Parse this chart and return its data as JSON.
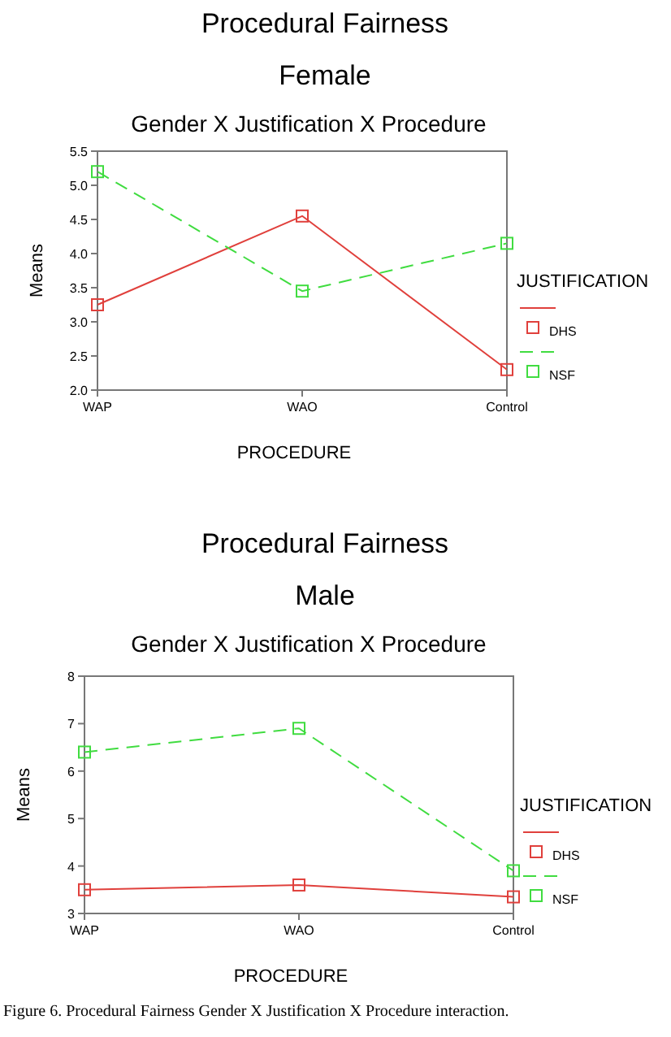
{
  "chart_data": [
    {
      "type": "line",
      "title": "Procedural Fairness",
      "subtitle": "Female",
      "annotations": [
        "Gender X Justification X Procedure"
      ],
      "xlabel": "PROCEDURE",
      "ylabel": "Means",
      "legend_title": "JUSTIFICATION",
      "legend": "right",
      "marker": "square",
      "categories": [
        "WAP",
        "WAO",
        "Control"
      ],
      "ylim": [
        2.0,
        5.5
      ],
      "yticks": [
        {
          "value": 2,
          "label": "2.0"
        },
        {
          "value": 2.5,
          "label": "2.5"
        },
        {
          "value": 3,
          "label": "3.0"
        },
        {
          "value": 3.5,
          "label": "3.5"
        },
        {
          "value": 4,
          "label": "4.0"
        },
        {
          "value": 4.5,
          "label": "4.5"
        },
        {
          "value": 5,
          "label": "5.0"
        },
        {
          "value": 5.5,
          "label": "5.5"
        }
      ],
      "grid": false,
      "series": [
        {
          "name": "DHS",
          "color": "#e0403c",
          "line_style": "solid",
          "values": [
            3.25,
            4.55,
            2.3
          ]
        },
        {
          "name": "NSF",
          "color": "#40dc40",
          "line_style": "dashed",
          "values": [
            5.2,
            3.45,
            4.15
          ]
        }
      ]
    },
    {
      "type": "line",
      "title": "Procedural Fairness",
      "subtitle": "Male",
      "annotations": [
        "Gender X Justification X Procedure",
        "Figure 6. Procedural Fairness Gender X Justification X Procedure interaction."
      ],
      "xlabel": "PROCEDURE",
      "ylabel": "Means",
      "legend_title": "JUSTIFICATION",
      "legend": "right",
      "marker": "square",
      "categories": [
        "WAP",
        "WAO",
        "Control"
      ],
      "ylim": [
        3,
        8
      ],
      "yticks": [
        3,
        4,
        5,
        6,
        7,
        8
      ],
      "grid": false,
      "series": [
        {
          "name": "DHS",
          "color": "#e0403c",
          "line_style": "solid",
          "values": [
            3.5,
            3.6,
            3.35
          ]
        },
        {
          "name": "NSF",
          "color": "#40dc40",
          "line_style": "dashed",
          "values": [
            6.4,
            6.9,
            3.9
          ]
        }
      ]
    }
  ]
}
